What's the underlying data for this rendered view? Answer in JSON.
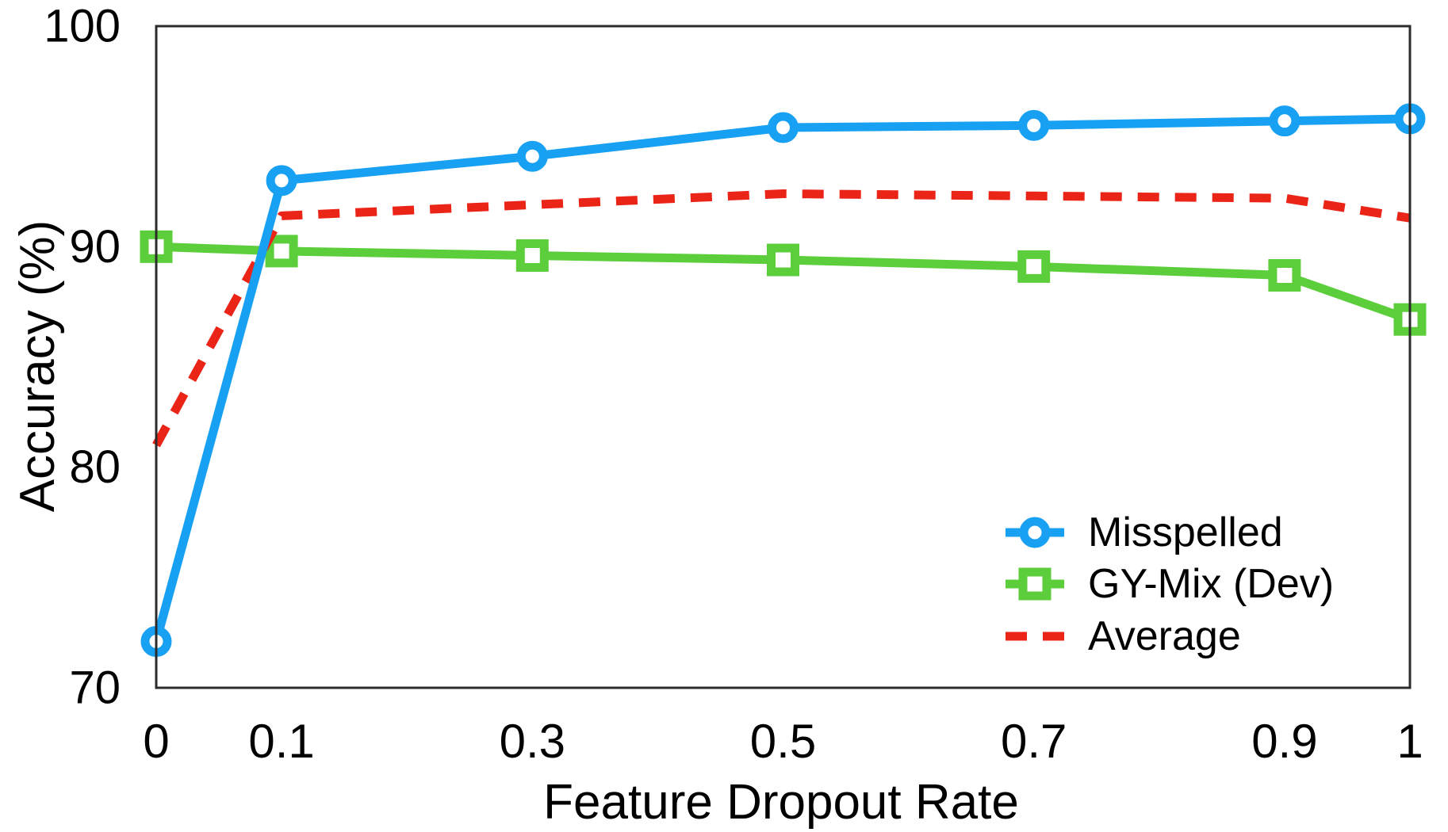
{
  "chart_data": {
    "type": "line",
    "title": "",
    "xlabel": "Feature Dropout Rate",
    "ylabel": "Accuracy (%)",
    "xlim": [
      0,
      1
    ],
    "ylim": [
      70,
      100
    ],
    "grid": false,
    "legend_position": "lower-right-inside",
    "xticks": [
      {
        "value": 0,
        "label": "0"
      },
      {
        "value": 0.1,
        "label": "0.1"
      },
      {
        "value": 0.3,
        "label": "0.3"
      },
      {
        "value": 0.5,
        "label": "0.5"
      },
      {
        "value": 0.7,
        "label": "0.7"
      },
      {
        "value": 0.9,
        "label": "0.9"
      },
      {
        "value": 1,
        "label": "1"
      }
    ],
    "yticks": [
      {
        "value": 70,
        "label": "70"
      },
      {
        "value": 80,
        "label": "80"
      },
      {
        "value": 90,
        "label": "90"
      },
      {
        "value": 100,
        "label": "100"
      }
    ],
    "x": [
      0,
      0.1,
      0.3,
      0.5,
      0.7,
      0.9,
      1
    ],
    "series": [
      {
        "name": "Misspelled",
        "color": "#18A0F2",
        "marker": "circle",
        "line_style": "solid",
        "values": [
          72.1,
          93.0,
          94.1,
          95.4,
          95.5,
          95.7,
          95.8
        ]
      },
      {
        "name": "GY-Mix (Dev)",
        "color": "#5DCE3B",
        "marker": "square",
        "line_style": "solid",
        "values": [
          90.0,
          89.8,
          89.6,
          89.4,
          89.1,
          88.7,
          86.7
        ]
      },
      {
        "name": "Average",
        "color": "#EB2418",
        "marker": "none",
        "line_style": "dashed",
        "values": [
          81.0,
          91.4,
          91.9,
          92.4,
          92.3,
          92.2,
          91.3
        ]
      }
    ],
    "colors": {
      "frame": "#2b2b2b",
      "text": "#000000",
      "background": "#ffffff"
    }
  }
}
